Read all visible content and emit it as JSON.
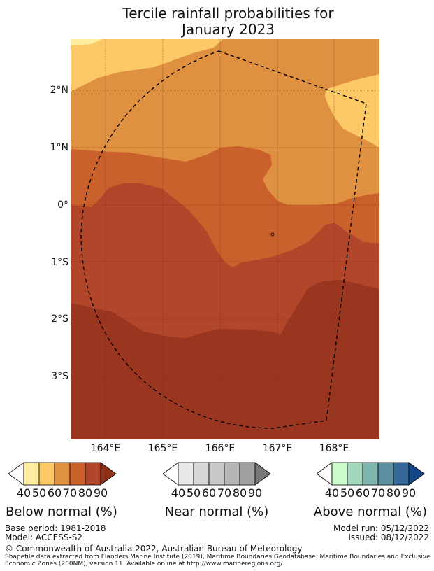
{
  "title_line1": "Tercile rainfall probabilities for",
  "title_line2": "January 2023",
  "lat_labels": [
    "2°N",
    "1°N",
    "0°",
    "1°S",
    "2°S",
    "3°S"
  ],
  "lon_labels": [
    "164°E",
    "165°E",
    "166°E",
    "167°E",
    "168°E"
  ],
  "colorbars": [
    {
      "label": "Below normal (%)",
      "ticks": [
        "40",
        "50",
        "60",
        "70",
        "80",
        "90"
      ],
      "colors": [
        "#ffffff",
        "#ffee9f",
        "#fdc966",
        "#e09041",
        "#ca612d",
        "#b1462a",
        "#8f3119"
      ]
    },
    {
      "label": "Near normal (%)",
      "ticks": [
        "40",
        "50",
        "60",
        "70",
        "80",
        "90"
      ],
      "colors": [
        "#ffffff",
        "#e9e9e9",
        "#d8d8d8",
        "#c8c8c8",
        "#b6b6b6",
        "#a0a0a0",
        "#777777"
      ]
    },
    {
      "label": "Above normal (%)",
      "ticks": [
        "40",
        "50",
        "60",
        "70",
        "80",
        "90"
      ],
      "colors": [
        "#ffffff",
        "#ccfccc",
        "#a4d8bc",
        "#7fb6ad",
        "#5d8fa0",
        "#356999",
        "#14478a"
      ]
    }
  ],
  "base_period": "Base period: 1981-2018",
  "model": "Model: ACCESS-S2",
  "model_run": "Model run: 05/12/2022",
  "issued": "Issued: 08/12/2022",
  "copyright": "© Commonwealth of Australia 2022, Australian Bureau of Meteorology",
  "shapefile_note": "Shapefile data extracted from Flanders Marine Institute (2019), Maritime Boundaries Geodatabase: Maritime Boundaries and Exclusive Economic Zones (200NM), version 11. Available online at http://www.marineregions.org/."
}
